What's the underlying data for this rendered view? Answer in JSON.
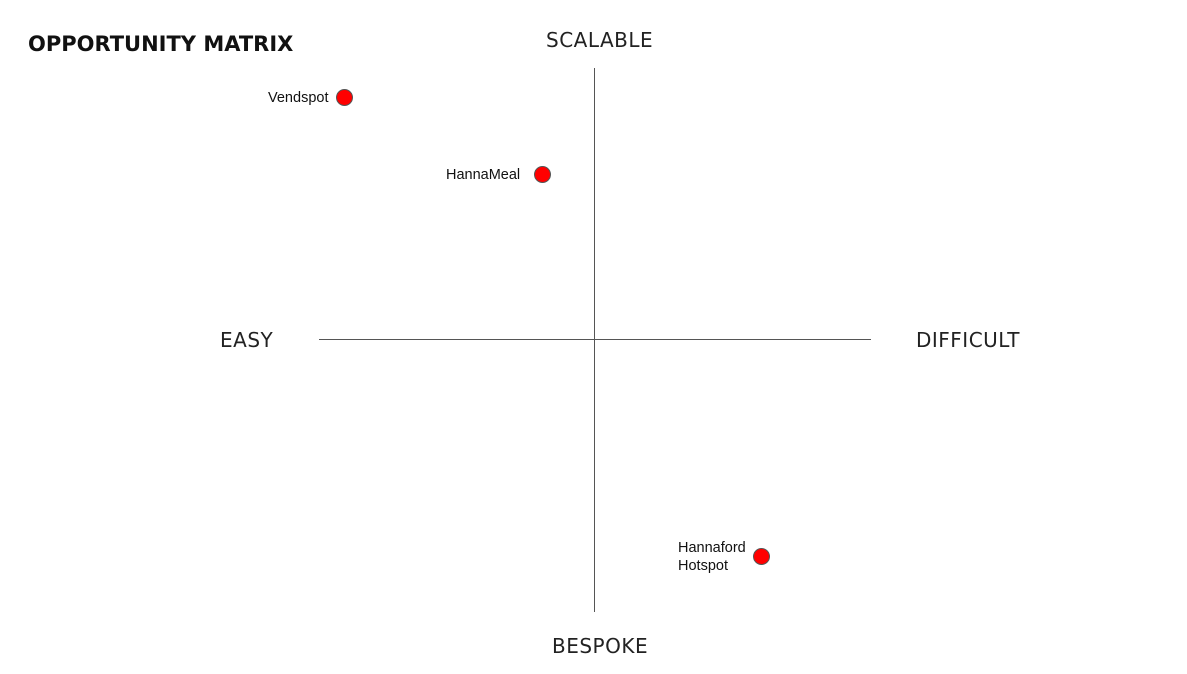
{
  "title": "OPPORTUNITY MATRIX",
  "axes": {
    "top": "SCALABLE",
    "bottom": "BESPOKE",
    "left": "EASY",
    "right": "DIFFICULT"
  },
  "points": [
    {
      "label": "Vendspot",
      "color": "#ff0000"
    },
    {
      "label": "HannaMeal",
      "color": "#ff0000"
    },
    {
      "label_lines": [
        "Hannaford",
        "Hotspot"
      ],
      "color": "#ff0000"
    }
  ]
}
